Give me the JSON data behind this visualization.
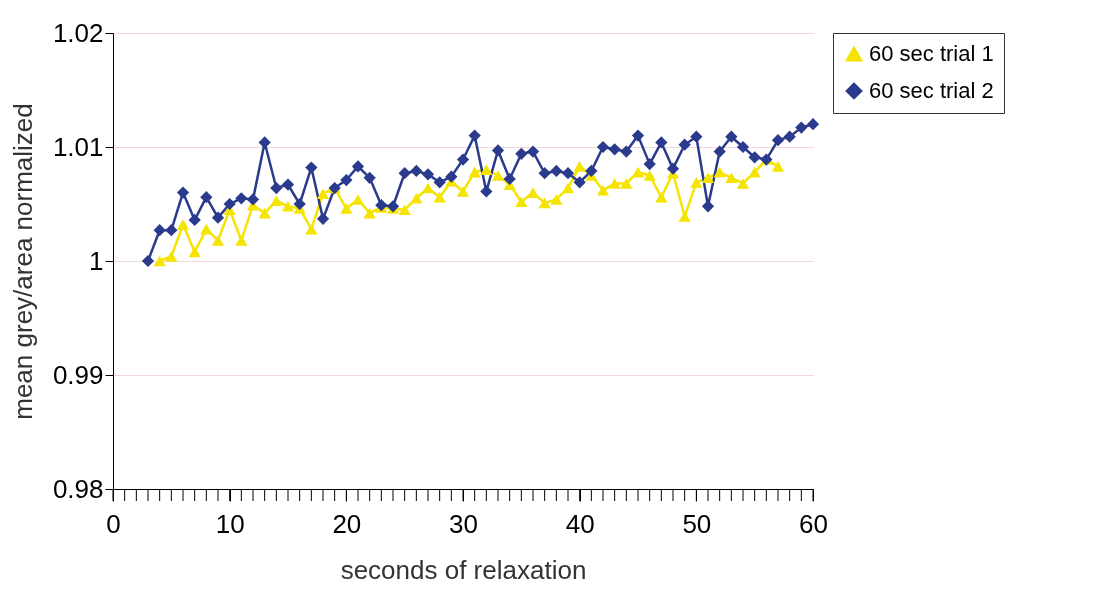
{
  "chart_data": {
    "type": "line",
    "xlabel": "seconds of relaxation",
    "ylabel": "mean grey/area normalized",
    "xlim": [
      0,
      60
    ],
    "ylim": [
      0.98,
      1.02
    ],
    "xticks": [
      0,
      {
        "value": 1,
        "label": null
      },
      {
        "value": 2,
        "label": null
      },
      {
        "value": 3,
        "label": null
      },
      {
        "value": 4,
        "label": null
      },
      {
        "value": 5,
        "label": null
      },
      {
        "value": 6,
        "label": null
      },
      {
        "value": 7,
        "label": null
      },
      {
        "value": 8,
        "label": null
      },
      {
        "value": 9,
        "label": null
      },
      10,
      {
        "value": 11,
        "label": null
      },
      {
        "value": 12,
        "label": null
      },
      {
        "value": 13,
        "label": null
      },
      {
        "value": 14,
        "label": null
      },
      {
        "value": 15,
        "label": null
      },
      {
        "value": 16,
        "label": null
      },
      {
        "value": 17,
        "label": null
      },
      {
        "value": 18,
        "label": null
      },
      {
        "value": 19,
        "label": null
      },
      20,
      {
        "value": 21,
        "label": null
      },
      {
        "value": 22,
        "label": null
      },
      {
        "value": 23,
        "label": null
      },
      {
        "value": 24,
        "label": null
      },
      {
        "value": 25,
        "label": null
      },
      {
        "value": 26,
        "label": null
      },
      {
        "value": 27,
        "label": null
      },
      {
        "value": 28,
        "label": null
      },
      {
        "value": 29,
        "label": null
      },
      30,
      {
        "value": 31,
        "label": null
      },
      {
        "value": 32,
        "label": null
      },
      {
        "value": 33,
        "label": null
      },
      {
        "value": 34,
        "label": null
      },
      {
        "value": 35,
        "label": null
      },
      {
        "value": 36,
        "label": null
      },
      {
        "value": 37,
        "label": null
      },
      {
        "value": 38,
        "label": null
      },
      {
        "value": 39,
        "label": null
      },
      40,
      {
        "value": 41,
        "label": null
      },
      {
        "value": 42,
        "label": null
      },
      {
        "value": 43,
        "label": null
      },
      {
        "value": 44,
        "label": null
      },
      {
        "value": 45,
        "label": null
      },
      {
        "value": 46,
        "label": null
      },
      {
        "value": 47,
        "label": null
      },
      {
        "value": 48,
        "label": null
      },
      {
        "value": 49,
        "label": null
      },
      50,
      {
        "value": 51,
        "label": null
      },
      {
        "value": 52,
        "label": null
      },
      {
        "value": 53,
        "label": null
      },
      {
        "value": 54,
        "label": null
      },
      {
        "value": 55,
        "label": null
      },
      {
        "value": 56,
        "label": null
      },
      {
        "value": 57,
        "label": null
      },
      {
        "value": 58,
        "label": null
      },
      {
        "value": 59,
        "label": null
      },
      60
    ],
    "yticks": [
      {
        "value": 0.98,
        "label": "0.98"
      },
      {
        "value": 0.99,
        "label": "0.99"
      },
      {
        "value": 1.0,
        "label": "1"
      },
      {
        "value": 1.01,
        "label": "1.01"
      },
      {
        "value": 1.02,
        "label": "1.02"
      }
    ],
    "grid": "y",
    "legend": "right",
    "line_style": "solid",
    "series": [
      {
        "name": "60 sec trial 1",
        "color": "#f5e400",
        "marker": "triangle",
        "x": [
          4,
          5,
          6,
          7,
          8,
          9,
          10,
          11,
          12,
          13,
          14,
          15,
          16,
          17,
          18,
          19,
          20,
          21,
          22,
          23,
          24,
          25,
          26,
          27,
          28,
          29,
          30,
          31,
          32,
          33,
          34,
          35,
          36,
          37,
          38,
          39,
          40,
          41,
          42,
          43,
          44,
          45,
          46,
          47,
          48,
          49,
          50,
          51,
          52,
          53,
          54,
          55,
          56,
          57
        ],
        "values": [
          1.0,
          1.0004,
          1.0032,
          1.0008,
          1.0028,
          1.0018,
          1.0045,
          1.0018,
          1.0049,
          1.0042,
          1.0053,
          1.0048,
          1.0046,
          1.0028,
          1.0059,
          1.0064,
          1.0046,
          1.0054,
          1.0042,
          1.0047,
          1.0046,
          1.0045,
          1.0055,
          1.0064,
          1.0056,
          1.007,
          1.0061,
          1.0078,
          1.008,
          1.0075,
          1.0067,
          1.0052,
          1.006,
          1.0051,
          1.0054,
          1.0064,
          1.0083,
          1.0075,
          1.0062,
          1.0068,
          1.0068,
          1.0078,
          1.0075,
          1.0056,
          1.0077,
          1.0039,
          1.0069,
          1.0073,
          1.0078,
          1.0073,
          1.0068,
          1.0078,
          1.0089,
          1.0083
        ]
      },
      {
        "name": "60 sec trial 2",
        "color": "#2a3a8c",
        "marker": "diamond",
        "x": [
          3,
          4,
          5,
          6,
          7,
          8,
          9,
          10,
          11,
          12,
          13,
          14,
          15,
          16,
          17,
          18,
          19,
          20,
          21,
          22,
          23,
          24,
          25,
          26,
          27,
          28,
          29,
          30,
          31,
          32,
          33,
          34,
          35,
          36,
          37,
          38,
          39,
          40,
          41,
          42,
          43,
          44,
          45,
          46,
          47,
          48,
          49,
          50,
          51,
          52,
          53,
          54,
          55,
          56,
          57,
          58,
          59,
          60
        ],
        "values": [
          1.0,
          1.0027,
          1.0027,
          1.006,
          1.0036,
          1.0056,
          1.0038,
          1.005,
          1.0055,
          1.0054,
          1.0104,
          1.0064,
          1.0067,
          1.005,
          1.0082,
          1.0037,
          1.0064,
          1.0071,
          1.0083,
          1.0073,
          1.0049,
          1.0048,
          1.0077,
          1.0079,
          1.0076,
          1.0069,
          1.0074,
          1.0089,
          1.011,
          1.0061,
          1.0097,
          1.0072,
          1.0094,
          1.0096,
          1.0077,
          1.0079,
          1.0077,
          1.0069,
          1.0079,
          1.01,
          1.0098,
          1.0096,
          1.011,
          1.0085,
          1.0104,
          1.0081,
          1.0102,
          1.0109,
          1.0048,
          1.0096,
          1.0109,
          1.01,
          1.0091,
          1.0089,
          1.0106,
          1.0109,
          1.0117,
          1.012
        ]
      }
    ]
  }
}
